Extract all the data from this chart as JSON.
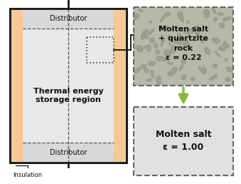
{
  "bg_color": "#c8c8c8",
  "outer_bg": "#ffffff",
  "insulation_color": "#f5c896",
  "arrow_color": "#8ab83a",
  "box_dashed_color": "#666666",
  "box1_text": "Molten salt\n+ quartzite\nrock\nε = 0.22",
  "box2_text": "Molten salt\nε = 1.00",
  "text_thermal": "Thermal energy\nstorage region",
  "text_distributor_top": "Distributor",
  "text_distributor_bot": "Distributor",
  "text_insulation": "Insulation",
  "rock_color_bg": "#b8b8a8",
  "rock_color_fg": "#a0a090",
  "rock_edge": "#909080"
}
